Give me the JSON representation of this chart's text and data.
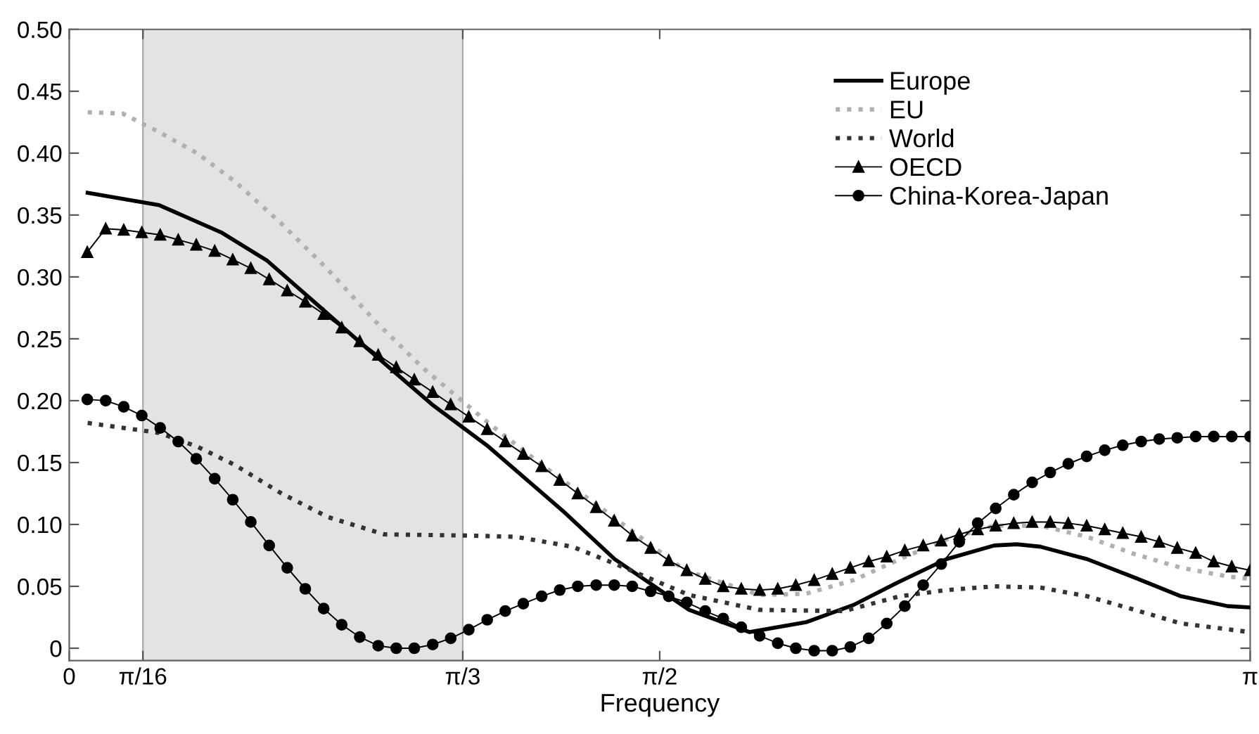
{
  "chart_data": {
    "type": "line",
    "xlabel": "Frequency",
    "xlim": [
      0,
      3.142
    ],
    "xticks": [
      0,
      {
        "value": 0.196,
        "label": "π/16"
      },
      {
        "value": 1.047,
        "label": "π/3"
      },
      {
        "value": 1.571,
        "label": "π/2"
      },
      {
        "value": 3.142,
        "label": "π"
      }
    ],
    "ylim": [
      -0.01,
      0.5
    ],
    "yticks": [
      0,
      0.05,
      {
        "value": 0.1,
        "label": "0.10"
      },
      0.15,
      {
        "value": 0.2,
        "label": "0.20"
      },
      0.25,
      {
        "value": 0.3,
        "label": "0.30"
      },
      0.35,
      {
        "value": 0.4,
        "label": "0.40"
      },
      0.45,
      {
        "value": 0.5,
        "label": "0.50"
      }
    ],
    "grid": false,
    "legend": "top right",
    "bands": [
      {
        "axis": "x",
        "from": 0.196,
        "to": 1.047,
        "color": "#e3e3e3"
      }
    ],
    "x": [
      0.048,
      0.097,
      0.145,
      0.193,
      0.242,
      0.29,
      0.338,
      0.387,
      0.435,
      0.483,
      0.532,
      0.58,
      0.628,
      0.677,
      0.725,
      0.773,
      0.822,
      0.87,
      0.918,
      0.967,
      1.015,
      1.063,
      1.112,
      1.16,
      1.208,
      1.257,
      1.305,
      1.353,
      1.402,
      1.45,
      1.498,
      1.547,
      1.595,
      1.643,
      1.692,
      1.74,
      1.788,
      1.837,
      1.885,
      1.933,
      1.982,
      2.03,
      2.078,
      2.127,
      2.175,
      2.223,
      2.272,
      2.32,
      2.368,
      2.417,
      2.465,
      2.513,
      2.562,
      2.61,
      2.658,
      2.707,
      2.755,
      2.803,
      2.852,
      2.9,
      2.948,
      2.997,
      3.045,
      3.093,
      3.142
    ],
    "series": [
      {
        "name": "Europe",
        "color": "#000000",
        "line_style": "solid",
        "marker": "none",
        "x": [
          0.049,
          0.239,
          0.404,
          0.527,
          0.666,
          0.778,
          0.965,
          1.115,
          1.313,
          1.451,
          1.649,
          1.81,
          1.96,
          2.087,
          2.21,
          2.334,
          2.461,
          2.521,
          2.584,
          2.708,
          2.835,
          2.958,
          3.082,
          3.142
        ],
        "values": [
          0.368,
          0.358,
          0.336,
          0.313,
          0.276,
          0.246,
          0.197,
          0.163,
          0.111,
          0.072,
          0.031,
          0.013,
          0.021,
          0.035,
          0.054,
          0.072,
          0.083,
          0.084,
          0.082,
          0.072,
          0.057,
          0.042,
          0.034,
          0.033
        ]
      },
      {
        "name": "EU",
        "color": "#b0b0b0",
        "line_style": "dotted",
        "marker": "none",
        "x": [
          0.049,
          0.142,
          0.239,
          0.34,
          0.441,
          0.565,
          0.688,
          0.815,
          0.939,
          1.115,
          1.249,
          1.425,
          1.638,
          1.836,
          1.96,
          2.087,
          2.21,
          2.334,
          2.461,
          2.584,
          2.708,
          2.835,
          2.958,
          3.082,
          3.142
        ],
        "values": [
          0.433,
          0.432,
          0.417,
          0.4,
          0.377,
          0.343,
          0.306,
          0.264,
          0.227,
          0.182,
          0.15,
          0.111,
          0.063,
          0.043,
          0.044,
          0.055,
          0.072,
          0.088,
          0.099,
          0.099,
          0.09,
          0.076,
          0.065,
          0.058,
          0.056
        ]
      },
      {
        "name": "World",
        "color": "#333333",
        "line_style": "dotted",
        "marker": "none",
        "x": [
          0.049,
          0.239,
          0.34,
          0.441,
          0.565,
          0.688,
          0.838,
          1.062,
          1.189,
          1.339,
          1.462,
          1.649,
          1.836,
          2.061,
          2.21,
          2.334,
          2.461,
          2.584,
          2.708,
          2.835,
          2.958,
          3.142
        ],
        "values": [
          0.182,
          0.174,
          0.163,
          0.148,
          0.125,
          0.106,
          0.092,
          0.091,
          0.09,
          0.082,
          0.067,
          0.043,
          0.031,
          0.03,
          0.042,
          0.047,
          0.05,
          0.049,
          0.042,
          0.031,
          0.02,
          0.013
        ]
      },
      {
        "name": "OECD",
        "color": "#000000",
        "line_style": "solid",
        "marker": "triangle",
        "values": [
          0.32,
          0.339,
          0.338,
          0.336,
          0.334,
          0.33,
          0.326,
          0.321,
          0.314,
          0.307,
          0.298,
          0.289,
          0.28,
          0.27,
          0.259,
          0.248,
          0.237,
          0.227,
          0.217,
          0.207,
          0.197,
          0.187,
          0.177,
          0.167,
          0.157,
          0.147,
          0.136,
          0.125,
          0.114,
          0.103,
          0.091,
          0.081,
          0.071,
          0.063,
          0.056,
          0.05,
          0.048,
          0.047,
          0.048,
          0.051,
          0.055,
          0.06,
          0.065,
          0.07,
          0.074,
          0.079,
          0.083,
          0.087,
          0.092,
          0.096,
          0.099,
          0.101,
          0.102,
          0.102,
          0.101,
          0.099,
          0.096,
          0.093,
          0.09,
          0.086,
          0.081,
          0.077,
          0.07,
          0.066,
          0.063
        ]
      },
      {
        "name": "China-Korea-Japan",
        "color": "#000000",
        "line_style": "solid",
        "marker": "circle",
        "values": [
          0.201,
          0.2,
          0.195,
          0.188,
          0.178,
          0.167,
          0.153,
          0.137,
          0.12,
          0.102,
          0.083,
          0.065,
          0.048,
          0.032,
          0.019,
          0.009,
          0.002,
          0.0,
          0.0,
          0.003,
          0.008,
          0.015,
          0.023,
          0.03,
          0.036,
          0.042,
          0.047,
          0.05,
          0.051,
          0.051,
          0.05,
          0.046,
          0.042,
          0.037,
          0.03,
          0.024,
          0.017,
          0.01,
          0.004,
          0.0,
          -0.002,
          -0.002,
          0.001,
          0.008,
          0.02,
          0.034,
          0.051,
          0.068,
          0.086,
          0.101,
          0.113,
          0.124,
          0.134,
          0.142,
          0.149,
          0.155,
          0.16,
          0.164,
          0.167,
          0.169,
          0.17,
          0.171,
          0.171,
          0.171,
          0.171
        ]
      }
    ]
  }
}
